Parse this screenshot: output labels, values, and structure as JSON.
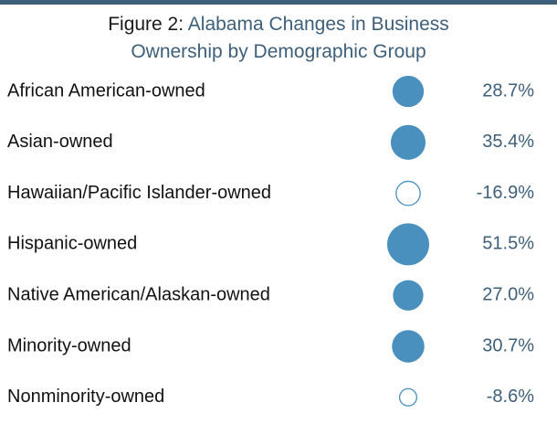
{
  "title": {
    "prefix": "Figure 2:",
    "line1": "Alabama Changes in Business",
    "line2": "Ownership by Demographic Group"
  },
  "colors": {
    "accent": "#4a90bf",
    "title_text": "#3d5f7a",
    "label_text": "#111111",
    "negative_fill": "#ffffff"
  },
  "chart_data": {
    "type": "bubble",
    "title": "Figure 2: Alabama Changes in Business Ownership by Demographic Group",
    "value_format": "percent",
    "categories": [
      "African American-owned",
      "Asian-owned",
      "Hawaiian/Pacific Islander-owned",
      "Hispanic-owned",
      "Native American/Alaskan-owned",
      "Minority-owned",
      "Nonminority-owned"
    ],
    "values": [
      28.7,
      35.4,
      -16.9,
      51.5,
      27.0,
      30.7,
      -8.6
    ],
    "labels": [
      "28.7%",
      "35.4%",
      "-16.9%",
      "51.5%",
      "27.0%",
      "30.7%",
      "-8.6%"
    ],
    "encoding": "circle area proportional to absolute value; filled = positive, hollow = negative"
  }
}
